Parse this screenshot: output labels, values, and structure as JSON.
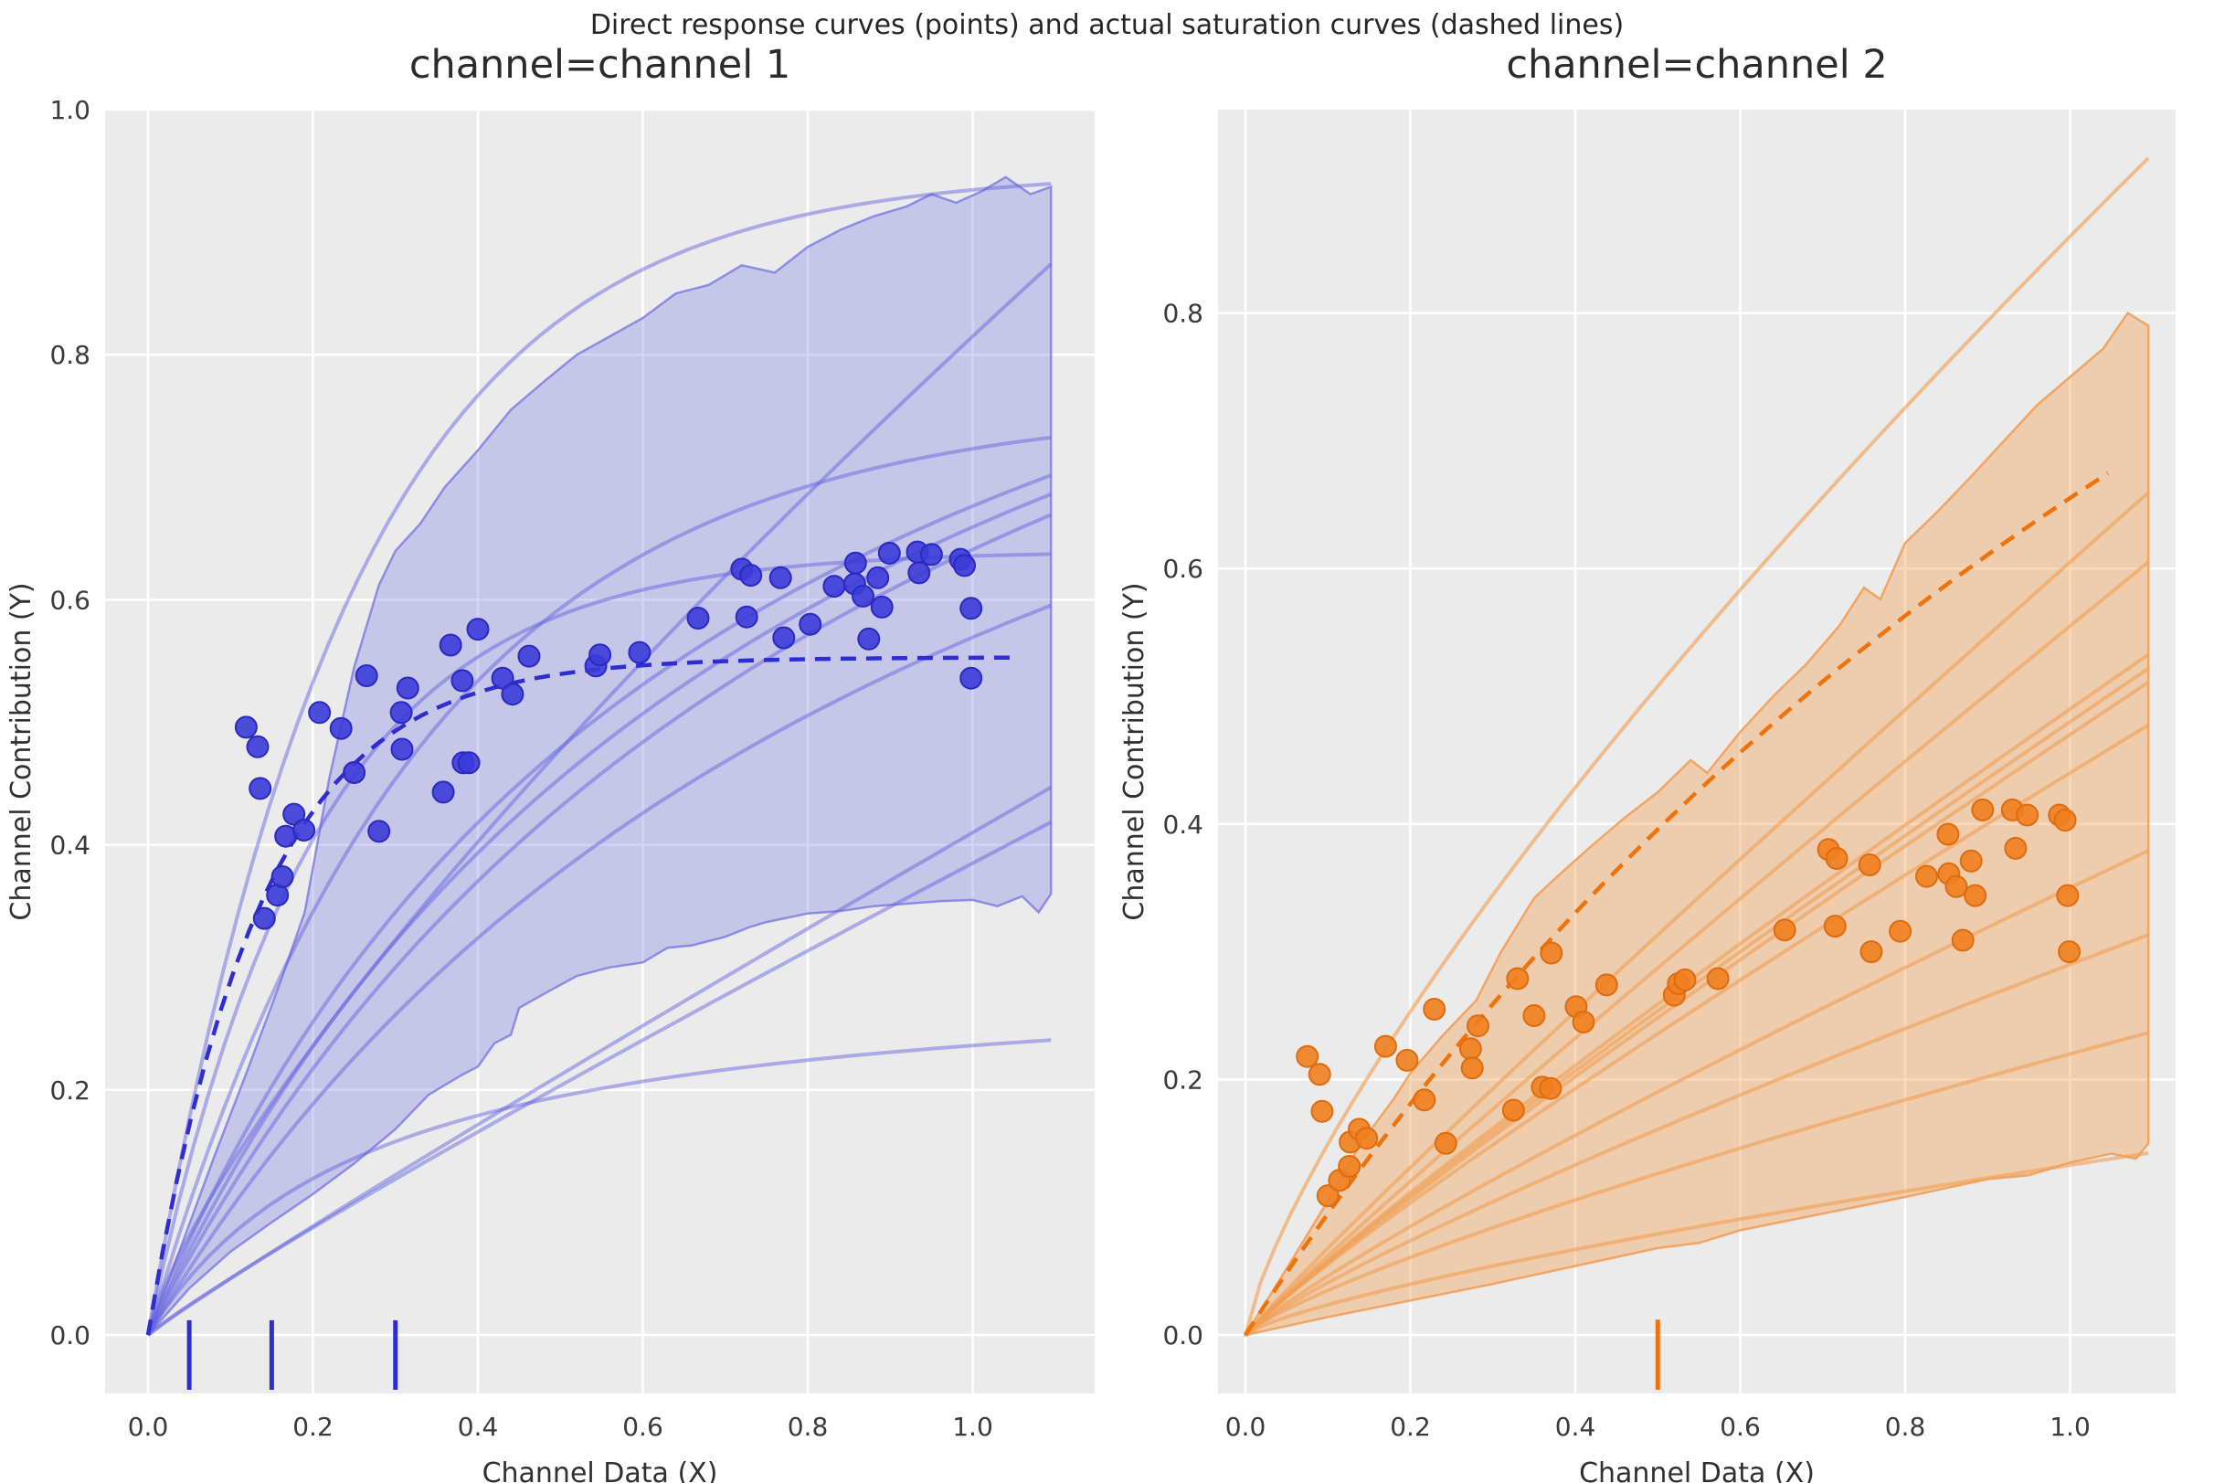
{
  "figure": {
    "suptitle": "Direct response curves (points) and actual saturation curves (dashed lines)",
    "background": "#ffffff",
    "plot_background": "#ebebeb",
    "grid_color": "#ffffff",
    "title_color": "#262626",
    "tick_color": "#3a3a3a"
  },
  "chart_data": [
    {
      "type": "scatter",
      "title": "channel=channel 1",
      "xlabel": "Channel Data (X)",
      "ylabel": "Channel Contribution (Y)",
      "xlim": [
        -0.052,
        1.148
      ],
      "ylim": [
        -0.048,
        1.0
      ],
      "x_ticks": [
        0.0,
        0.2,
        0.4,
        0.6,
        0.8,
        1.0
      ],
      "y_ticks": [
        0.0,
        0.2,
        0.4,
        0.6,
        0.8,
        1.0
      ],
      "legend": "none",
      "grid": true,
      "colors": {
        "point": "#3b3bd9",
        "point_edge": "#2a2ac0",
        "dashed": "#2d2dd0",
        "curve": "rgba(98,98,224,0.48)",
        "band_fill": "rgba(112,112,226,0.30)",
        "band_edge": "rgba(120,120,228,0.8)",
        "rug": "#2d2dd0"
      },
      "points": [
        [
          0.119,
          0.496
        ],
        [
          0.133,
          0.48
        ],
        [
          0.136,
          0.446
        ],
        [
          0.141,
          0.34
        ],
        [
          0.157,
          0.359
        ],
        [
          0.163,
          0.374
        ],
        [
          0.167,
          0.407
        ],
        [
          0.177,
          0.425
        ],
        [
          0.189,
          0.412
        ],
        [
          0.208,
          0.508
        ],
        [
          0.234,
          0.495
        ],
        [
          0.25,
          0.459
        ],
        [
          0.265,
          0.538
        ],
        [
          0.28,
          0.411
        ],
        [
          0.307,
          0.508
        ],
        [
          0.308,
          0.478
        ],
        [
          0.315,
          0.528
        ],
        [
          0.358,
          0.443
        ],
        [
          0.367,
          0.563
        ],
        [
          0.381,
          0.534
        ],
        [
          0.382,
          0.467
        ],
        [
          0.389,
          0.467
        ],
        [
          0.4,
          0.576
        ],
        [
          0.43,
          0.536
        ],
        [
          0.442,
          0.523
        ],
        [
          0.462,
          0.554
        ],
        [
          0.543,
          0.546
        ],
        [
          0.548,
          0.555
        ],
        [
          0.596,
          0.557
        ],
        [
          0.667,
          0.585
        ],
        [
          0.72,
          0.625
        ],
        [
          0.726,
          0.586
        ],
        [
          0.731,
          0.62
        ],
        [
          0.767,
          0.618
        ],
        [
          0.771,
          0.569
        ],
        [
          0.803,
          0.58
        ],
        [
          0.832,
          0.611
        ],
        [
          0.857,
          0.613
        ],
        [
          0.858,
          0.63
        ],
        [
          0.867,
          0.603
        ],
        [
          0.874,
          0.568
        ],
        [
          0.885,
          0.618
        ],
        [
          0.89,
          0.594
        ],
        [
          0.899,
          0.638
        ],
        [
          0.933,
          0.639
        ],
        [
          0.935,
          0.622
        ],
        [
          0.95,
          0.637
        ],
        [
          0.985,
          0.633
        ],
        [
          0.99,
          0.628
        ],
        [
          0.998,
          0.593
        ],
        [
          0.998,
          0.536
        ]
      ],
      "dashed_curve": {
        "type": "exp",
        "a": 0.553,
        "b": 0.135,
        "domain": [
          0,
          1.05
        ]
      },
      "solid_curves": [
        {
          "type": "exp",
          "a": 0.95,
          "b": 0.243
        },
        {
          "type": "pow",
          "a": 0.815,
          "b": 0.77
        },
        {
          "type": "exp",
          "a": 0.76,
          "b": 0.33
        },
        {
          "type": "hill",
          "a": 1.15,
          "b": 0.7
        },
        {
          "type": "hill",
          "a": 1.2,
          "b": 0.82
        },
        {
          "type": "hill",
          "a": 1.25,
          "b": 0.95
        },
        {
          "type": "exp",
          "a": 0.64,
          "b": 0.2
        },
        {
          "type": "hill",
          "a": 1.15,
          "b": 1.02
        },
        {
          "type": "pow",
          "a": 0.41,
          "b": 0.95
        },
        {
          "type": "pow",
          "a": 0.385,
          "b": 0.92
        },
        {
          "type": "hill",
          "a": 0.3,
          "b": 0.27
        }
      ],
      "curve_domain": [
        0,
        1.095
      ],
      "band": {
        "upper": [
          [
            0,
            0
          ],
          [
            0.04,
            0.072
          ],
          [
            0.08,
            0.145
          ],
          [
            0.12,
            0.215
          ],
          [
            0.16,
            0.287
          ],
          [
            0.19,
            0.345
          ],
          [
            0.22,
            0.455
          ],
          [
            0.25,
            0.545
          ],
          [
            0.28,
            0.612
          ],
          [
            0.3,
            0.64
          ],
          [
            0.33,
            0.662
          ],
          [
            0.36,
            0.692
          ],
          [
            0.4,
            0.722
          ],
          [
            0.44,
            0.755
          ],
          [
            0.48,
            0.778
          ],
          [
            0.52,
            0.8
          ],
          [
            0.56,
            0.815
          ],
          [
            0.6,
            0.83
          ],
          [
            0.64,
            0.85
          ],
          [
            0.68,
            0.857
          ],
          [
            0.72,
            0.873
          ],
          [
            0.76,
            0.867
          ],
          [
            0.8,
            0.888
          ],
          [
            0.84,
            0.902
          ],
          [
            0.88,
            0.913
          ],
          [
            0.92,
            0.921
          ],
          [
            0.95,
            0.931
          ],
          [
            0.98,
            0.924
          ],
          [
            1.01,
            0.933
          ],
          [
            1.04,
            0.945
          ],
          [
            1.07,
            0.931
          ],
          [
            1.095,
            0.937
          ]
        ],
        "lower": [
          [
            0,
            0
          ],
          [
            0.05,
            0.038
          ],
          [
            0.1,
            0.068
          ],
          [
            0.15,
            0.092
          ],
          [
            0.2,
            0.115
          ],
          [
            0.25,
            0.14
          ],
          [
            0.3,
            0.168
          ],
          [
            0.34,
            0.196
          ],
          [
            0.38,
            0.212
          ],
          [
            0.4,
            0.219
          ],
          [
            0.42,
            0.238
          ],
          [
            0.44,
            0.245
          ],
          [
            0.45,
            0.267
          ],
          [
            0.49,
            0.282
          ],
          [
            0.52,
            0.293
          ],
          [
            0.56,
            0.3
          ],
          [
            0.6,
            0.304
          ],
          [
            0.63,
            0.316
          ],
          [
            0.66,
            0.318
          ],
          [
            0.7,
            0.325
          ],
          [
            0.73,
            0.333
          ],
          [
            0.75,
            0.337
          ],
          [
            0.8,
            0.344
          ],
          [
            0.84,
            0.346
          ],
          [
            0.88,
            0.35
          ],
          [
            0.92,
            0.352
          ],
          [
            0.96,
            0.354
          ],
          [
            1.0,
            0.355
          ],
          [
            1.03,
            0.35
          ],
          [
            1.06,
            0.358
          ],
          [
            1.08,
            0.345
          ],
          [
            1.095,
            0.36
          ]
        ]
      },
      "rug_x": [
        0.05,
        0.15,
        0.3
      ]
    },
    {
      "type": "scatter",
      "title": "channel=channel 2",
      "xlabel": "Channel Data (X)",
      "ylabel": "Channel Contribution (Y)",
      "xlim": [
        -0.033,
        1.128
      ],
      "ylim": [
        -0.044,
        0.959
      ],
      "x_ticks": [
        0.0,
        0.2,
        0.4,
        0.6,
        0.8,
        1.0
      ],
      "y_ticks": [
        0.0,
        0.2,
        0.4,
        0.6,
        0.8
      ],
      "legend": "none",
      "grid": true,
      "colors": {
        "point": "#ef7f1e",
        "point_edge": "#dd6c10",
        "dashed": "#f0720a",
        "curve": "rgba(240,160,85,0.62)",
        "band_fill": "rgba(243,159,86,0.40)",
        "band_edge": "rgba(242,158,88,0.9)",
        "rug": "#f0720a"
      },
      "points": [
        [
          0.075,
          0.218
        ],
        [
          0.09,
          0.204
        ],
        [
          0.093,
          0.175
        ],
        [
          0.1,
          0.109
        ],
        [
          0.114,
          0.121
        ],
        [
          0.126,
          0.132
        ],
        [
          0.127,
          0.151
        ],
        [
          0.138,
          0.161
        ],
        [
          0.147,
          0.154
        ],
        [
          0.17,
          0.226
        ],
        [
          0.196,
          0.215
        ],
        [
          0.217,
          0.184
        ],
        [
          0.229,
          0.255
        ],
        [
          0.243,
          0.15
        ],
        [
          0.273,
          0.224
        ],
        [
          0.275,
          0.209
        ],
        [
          0.282,
          0.242
        ],
        [
          0.325,
          0.176
        ],
        [
          0.33,
          0.279
        ],
        [
          0.35,
          0.25
        ],
        [
          0.36,
          0.194
        ],
        [
          0.37,
          0.193
        ],
        [
          0.371,
          0.299
        ],
        [
          0.401,
          0.257
        ],
        [
          0.41,
          0.245
        ],
        [
          0.438,
          0.274
        ],
        [
          0.52,
          0.266
        ],
        [
          0.525,
          0.275
        ],
        [
          0.533,
          0.278
        ],
        [
          0.573,
          0.279
        ],
        [
          0.654,
          0.317
        ],
        [
          0.707,
          0.38
        ],
        [
          0.715,
          0.32
        ],
        [
          0.717,
          0.373
        ],
        [
          0.757,
          0.368
        ],
        [
          0.759,
          0.3
        ],
        [
          0.794,
          0.316
        ],
        [
          0.826,
          0.359
        ],
        [
          0.852,
          0.392
        ],
        [
          0.853,
          0.361
        ],
        [
          0.862,
          0.351
        ],
        [
          0.87,
          0.309
        ],
        [
          0.88,
          0.371
        ],
        [
          0.885,
          0.344
        ],
        [
          0.894,
          0.411
        ],
        [
          0.93,
          0.411
        ],
        [
          0.934,
          0.381
        ],
        [
          0.948,
          0.407
        ],
        [
          0.987,
          0.407
        ],
        [
          0.994,
          0.403
        ],
        [
          0.997,
          0.344
        ],
        [
          0.999,
          0.3
        ]
      ],
      "dashed_curve": {
        "type": "hill",
        "a": 1.9,
        "b": 1.9,
        "domain": [
          0,
          1.046
        ]
      },
      "solid_curves": [
        {
          "type": "pow",
          "a": 0.86,
          "b": 0.76
        },
        {
          "type": "pow",
          "a": 0.605,
          "b": 0.95
        },
        {
          "type": "pow",
          "a": 0.555,
          "b": 0.95
        },
        {
          "type": "pow",
          "a": 0.49,
          "b": 0.92
        },
        {
          "type": "pow",
          "a": 0.48,
          "b": 0.92
        },
        {
          "type": "pow",
          "a": 0.47,
          "b": 0.92
        },
        {
          "type": "pow",
          "a": 0.44,
          "b": 0.9
        },
        {
          "type": "pow",
          "a": 0.35,
          "b": 0.88
        },
        {
          "type": "pow",
          "a": 0.29,
          "b": 0.85
        },
        {
          "type": "pow",
          "a": 0.22,
          "b": 0.8
        },
        {
          "type": "pow",
          "a": 0.133,
          "b": 0.75
        }
      ],
      "curve_domain": [
        0,
        1.095
      ],
      "band": {
        "upper": [
          [
            0,
            0
          ],
          [
            0.05,
            0.052
          ],
          [
            0.1,
            0.105
          ],
          [
            0.14,
            0.15
          ],
          [
            0.18,
            0.185
          ],
          [
            0.2,
            0.205
          ],
          [
            0.24,
            0.235
          ],
          [
            0.28,
            0.262
          ],
          [
            0.31,
            0.3
          ],
          [
            0.35,
            0.342
          ],
          [
            0.38,
            0.36
          ],
          [
            0.42,
            0.383
          ],
          [
            0.46,
            0.405
          ],
          [
            0.5,
            0.425
          ],
          [
            0.54,
            0.45
          ],
          [
            0.56,
            0.44
          ],
          [
            0.6,
            0.472
          ],
          [
            0.64,
            0.5
          ],
          [
            0.68,
            0.525
          ],
          [
            0.72,
            0.555
          ],
          [
            0.75,
            0.585
          ],
          [
            0.77,
            0.576
          ],
          [
            0.8,
            0.62
          ],
          [
            0.84,
            0.645
          ],
          [
            0.88,
            0.672
          ],
          [
            0.92,
            0.7
          ],
          [
            0.96,
            0.728
          ],
          [
            1.0,
            0.75
          ],
          [
            1.04,
            0.772
          ],
          [
            1.07,
            0.8
          ],
          [
            1.095,
            0.79
          ]
        ],
        "lower": [
          [
            0,
            0
          ],
          [
            0.1,
            0.014
          ],
          [
            0.2,
            0.027
          ],
          [
            0.3,
            0.04
          ],
          [
            0.4,
            0.054
          ],
          [
            0.5,
            0.068
          ],
          [
            0.55,
            0.072
          ],
          [
            0.6,
            0.082
          ],
          [
            0.7,
            0.095
          ],
          [
            0.8,
            0.108
          ],
          [
            0.9,
            0.122
          ],
          [
            0.95,
            0.125
          ],
          [
            1.0,
            0.135
          ],
          [
            1.05,
            0.142
          ],
          [
            1.08,
            0.138
          ],
          [
            1.095,
            0.15
          ]
        ]
      },
      "rug_x": [
        0.5
      ]
    }
  ]
}
